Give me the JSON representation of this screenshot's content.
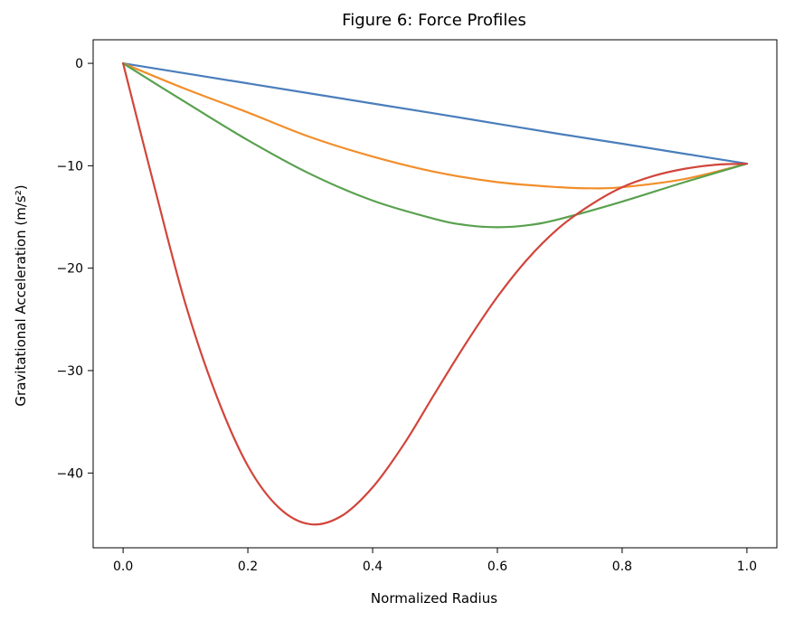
{
  "chart_data": {
    "type": "line",
    "title": "Figure 6: Force Profiles",
    "xlabel": "Normalized Radius",
    "ylabel": "Gravitational Acceleration (m/s²)",
    "xlim": [
      -0.048,
      1.048
    ],
    "ylim": [
      -47.3,
      2.3
    ],
    "xticks": [
      0.0,
      0.2,
      0.4,
      0.6,
      0.8,
      1.0
    ],
    "xtick_labels": [
      "0.0",
      "0.2",
      "0.4",
      "0.6",
      "0.8",
      "1.0"
    ],
    "yticks": [
      0,
      -10,
      -20,
      -30,
      -40
    ],
    "ytick_labels": [
      "0",
      "−10",
      "−20",
      "−30",
      "−40"
    ],
    "grid": false,
    "series": [
      {
        "color": "#4a7ebb",
        "x": [
          0.0,
          0.1,
          0.2,
          0.3,
          0.4,
          0.5,
          0.6,
          0.7,
          0.8,
          0.9,
          1.0
        ],
        "y": [
          0.0,
          -0.98,
          -1.96,
          -2.94,
          -3.92,
          -4.9,
          -5.9,
          -6.9,
          -7.85,
          -8.83,
          -9.8
        ]
      },
      {
        "color": "#f28e2b",
        "x": [
          0.0,
          0.1,
          0.2,
          0.3,
          0.4,
          0.5,
          0.6,
          0.7,
          0.75,
          0.8,
          0.9,
          1.0
        ],
        "y": [
          0.0,
          -2.5,
          -4.8,
          -7.2,
          -9.1,
          -10.6,
          -11.6,
          -12.1,
          -12.2,
          -12.1,
          -11.3,
          -9.8
        ]
      },
      {
        "color": "#59a14f",
        "x": [
          0.0,
          0.1,
          0.2,
          0.3,
          0.4,
          0.5,
          0.55,
          0.6,
          0.65,
          0.7,
          0.8,
          0.9,
          1.0
        ],
        "y": [
          0.0,
          -3.8,
          -7.5,
          -10.8,
          -13.4,
          -15.2,
          -15.8,
          -16.0,
          -15.8,
          -15.2,
          -13.5,
          -11.6,
          -9.8
        ]
      },
      {
        "color": "#d1453b",
        "x": [
          0.0,
          0.05,
          0.1,
          0.15,
          0.2,
          0.25,
          0.3,
          0.35,
          0.4,
          0.45,
          0.5,
          0.55,
          0.6,
          0.65,
          0.7,
          0.75,
          0.8,
          0.85,
          0.9,
          0.95,
          1.0
        ],
        "y": [
          0.0,
          -12.0,
          -23.5,
          -32.5,
          -39.3,
          -43.4,
          -45.0,
          -44.2,
          -41.4,
          -37.2,
          -32.2,
          -27.3,
          -22.8,
          -19.0,
          -16.0,
          -13.8,
          -12.1,
          -11.0,
          -10.3,
          -9.9,
          -9.8
        ]
      }
    ]
  }
}
